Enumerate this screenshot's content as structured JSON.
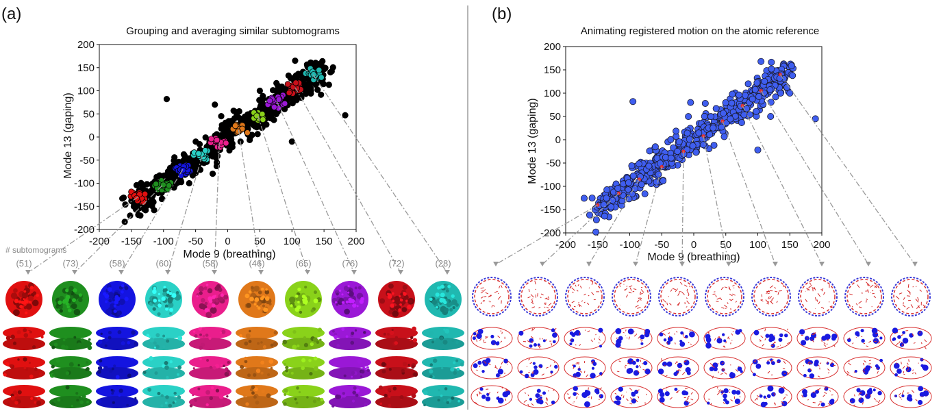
{
  "figure": {
    "panels": [
      {
        "label": "(a)",
        "title": "Grouping and averaging similar subtomograms",
        "counts_label": "# subtomograms",
        "counts": [
          "(51)",
          "(73)",
          "(58)",
          "(60)",
          "(58)",
          "(46)",
          "(65)",
          "(76)",
          "(72)",
          "(28)"
        ],
        "group_colors": [
          "#e01010",
          "#1f8f1f",
          "#1414e0",
          "#2ad1c6",
          "#ea1e8c",
          "#e0781a",
          "#8ad21a",
          "#9a18d6",
          "#c8101a",
          "#20b8b0"
        ],
        "icon_name": "density-map-volume"
      },
      {
        "label": "(b)",
        "title": "Animating registered motion on the atomic reference",
        "icon_name": "atomic-model-cartoon"
      }
    ]
  },
  "chart_data": [
    {
      "type": "scatter",
      "title": "Grouping and averaging similar subtomograms",
      "xlabel": "Mode 9 (breathing)",
      "ylabel": "Mode 13 (gaping)",
      "xlim": [
        -200,
        200
      ],
      "ylim": [
        -200,
        200
      ],
      "xticks": [
        -200,
        -150,
        -100,
        -50,
        0,
        50,
        100,
        150,
        200
      ],
      "yticks": [
        -200,
        -150,
        -100,
        -50,
        0,
        50,
        100,
        150,
        200
      ],
      "grid": false,
      "point_color": "#000000",
      "group_centers": [
        {
          "x": -140,
          "y": -130,
          "count": 51
        },
        {
          "x": -102,
          "y": -105,
          "count": 73
        },
        {
          "x": -70,
          "y": -70,
          "count": 58
        },
        {
          "x": -40,
          "y": -42,
          "count": 60
        },
        {
          "x": -13,
          "y": -13,
          "count": 58
        },
        {
          "x": 17,
          "y": 15,
          "count": 46
        },
        {
          "x": 47,
          "y": 46,
          "count": 65
        },
        {
          "x": 76,
          "y": 78,
          "count": 76
        },
        {
          "x": 105,
          "y": 107,
          "count": 72
        },
        {
          "x": 133,
          "y": 135,
          "count": 28
        }
      ],
      "outliers": [
        {
          "x": -95,
          "y": 82
        },
        {
          "x": 183,
          "y": 47
        },
        {
          "x": 105,
          "y": 165
        },
        {
          "x": -152,
          "y": -170
        },
        {
          "x": 140,
          "y": 102
        },
        {
          "x": 20,
          "y": -10
        },
        {
          "x": 35,
          "y": 0
        },
        {
          "x": 100,
          "y": -10
        },
        {
          "x": -20,
          "y": 70
        },
        {
          "x": 50,
          "y": 100
        },
        {
          "x": -60,
          "y": -100
        },
        {
          "x": 160,
          "y": 140
        }
      ]
    },
    {
      "type": "scatter",
      "title": "Animating registered motion on the atomic reference",
      "xlabel": "Mode 9 (breathing)",
      "ylabel": "Mode 13 (gaping)",
      "xlim": [
        -200,
        200
      ],
      "ylim": [
        -200,
        200
      ],
      "xticks": [
        -200,
        -150,
        -100,
        -50,
        0,
        50,
        100,
        150,
        200
      ],
      "yticks": [
        -200,
        -150,
        -100,
        -50,
        0,
        50,
        100,
        150,
        200
      ],
      "grid": false,
      "point_color": "#3f5ef0",
      "point_edge": "#1a1a2e",
      "trajectory_points": [
        {
          "x": -150,
          "y": -140
        },
        {
          "x": -117,
          "y": -115
        },
        {
          "x": -85,
          "y": -85
        },
        {
          "x": -50,
          "y": -58
        },
        {
          "x": -16,
          "y": -25
        },
        {
          "x": 15,
          "y": 8
        },
        {
          "x": 45,
          "y": 40
        },
        {
          "x": 76,
          "y": 73
        },
        {
          "x": 105,
          "y": 105
        },
        {
          "x": 135,
          "y": 140
        }
      ],
      "outliers": [
        {
          "x": -95,
          "y": 82
        },
        {
          "x": 190,
          "y": 45
        },
        {
          "x": 105,
          "y": 168
        },
        {
          "x": -152,
          "y": -172
        },
        {
          "x": 100,
          "y": -22
        },
        {
          "x": 18,
          "y": 78
        },
        {
          "x": 120,
          "y": 50
        },
        {
          "x": -5,
          "y": 80
        },
        {
          "x": 150,
          "y": 100
        }
      ]
    }
  ]
}
